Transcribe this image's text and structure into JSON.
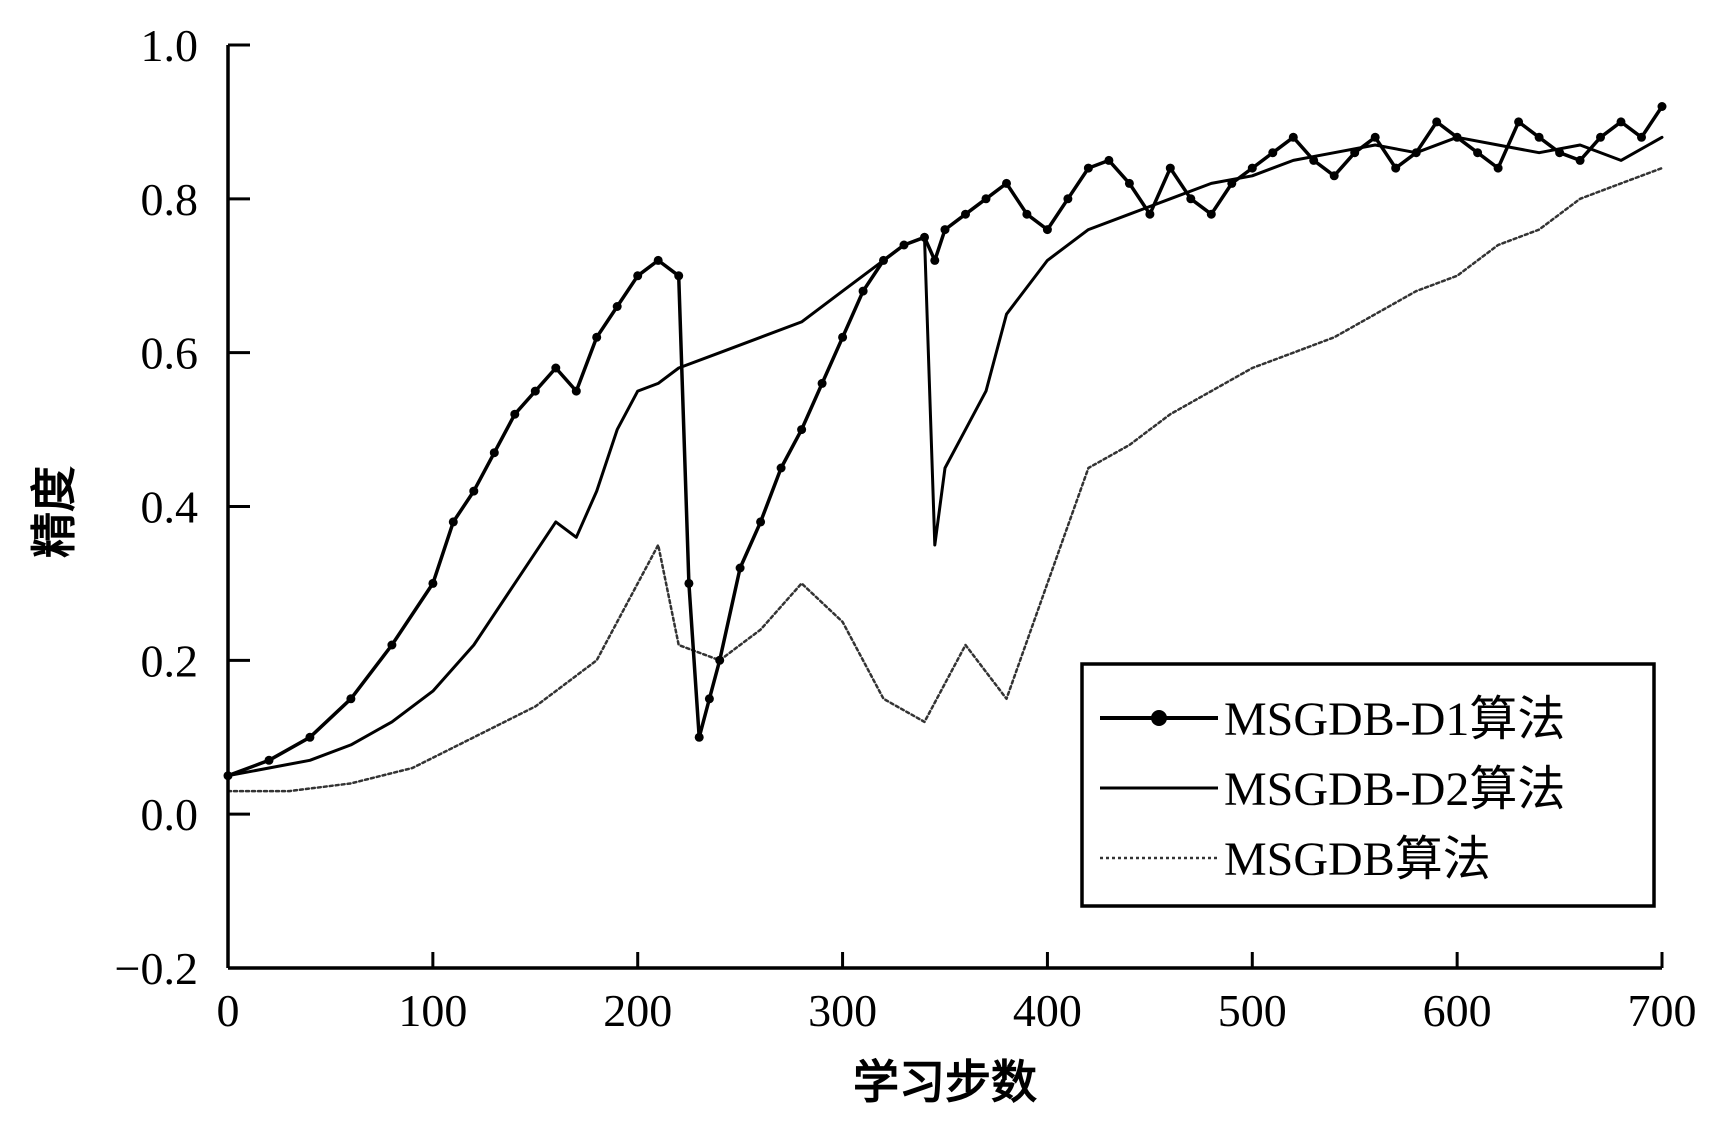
{
  "chart_data": {
    "type": "line",
    "title": "",
    "xlabel": "学习步数",
    "ylabel": "精度",
    "xlim": [
      0,
      700
    ],
    "ylim": [
      -0.2,
      1.0
    ],
    "x_ticks": [
      0,
      100,
      200,
      300,
      400,
      500,
      600,
      700
    ],
    "x_tick_labels": [
      "0",
      "100",
      "200",
      "300",
      "400",
      "500",
      "600",
      "700"
    ],
    "y_ticks": [
      -0.2,
      0.0,
      0.2,
      0.4,
      0.6,
      0.8,
      1.0
    ],
    "y_tick_labels": [
      "−0.2",
      "0.0",
      "0.2",
      "0.4",
      "0.6",
      "0.8",
      "1.0"
    ],
    "grid": false,
    "legend_position": "bottom-right",
    "series": [
      {
        "name": "MSGDB-D1算法",
        "style": "solid-marker",
        "color": "#000000",
        "x": [
          0,
          20,
          40,
          60,
          80,
          100,
          110,
          120,
          130,
          140,
          150,
          160,
          170,
          180,
          190,
          200,
          210,
          220,
          225,
          230,
          235,
          240,
          250,
          260,
          270,
          280,
          290,
          300,
          310,
          320,
          330,
          340,
          345,
          350,
          360,
          370,
          380,
          390,
          400,
          410,
          420,
          430,
          440,
          450,
          460,
          470,
          480,
          490,
          500,
          510,
          520,
          530,
          540,
          550,
          560,
          570,
          580,
          590,
          600,
          610,
          620,
          630,
          640,
          650,
          660,
          670,
          680,
          690,
          700
        ],
        "y": [
          0.05,
          0.07,
          0.1,
          0.15,
          0.22,
          0.3,
          0.38,
          0.42,
          0.47,
          0.52,
          0.55,
          0.58,
          0.55,
          0.62,
          0.66,
          0.7,
          0.72,
          0.7,
          0.3,
          0.1,
          0.15,
          0.2,
          0.32,
          0.38,
          0.45,
          0.5,
          0.56,
          0.62,
          0.68,
          0.72,
          0.74,
          0.75,
          0.72,
          0.76,
          0.78,
          0.8,
          0.82,
          0.78,
          0.76,
          0.8,
          0.84,
          0.85,
          0.82,
          0.78,
          0.84,
          0.8,
          0.78,
          0.82,
          0.84,
          0.86,
          0.88,
          0.85,
          0.83,
          0.86,
          0.88,
          0.84,
          0.86,
          0.9,
          0.88,
          0.86,
          0.84,
          0.9,
          0.88,
          0.86,
          0.85,
          0.88,
          0.9,
          0.88,
          0.92
        ]
      },
      {
        "name": "MSGDB-D2算法",
        "style": "solid",
        "color": "#000000",
        "x": [
          0,
          20,
          40,
          60,
          80,
          100,
          120,
          140,
          160,
          170,
          180,
          190,
          200,
          210,
          220,
          240,
          260,
          280,
          300,
          320,
          330,
          340,
          345,
          350,
          360,
          370,
          380,
          400,
          420,
          440,
          460,
          480,
          500,
          520,
          540,
          560,
          580,
          600,
          620,
          640,
          660,
          680,
          700
        ],
        "y": [
          0.05,
          0.06,
          0.07,
          0.09,
          0.12,
          0.16,
          0.22,
          0.3,
          0.38,
          0.36,
          0.42,
          0.5,
          0.55,
          0.56,
          0.58,
          0.6,
          0.62,
          0.64,
          0.68,
          0.72,
          0.74,
          0.75,
          0.35,
          0.45,
          0.5,
          0.55,
          0.65,
          0.72,
          0.76,
          0.78,
          0.8,
          0.82,
          0.83,
          0.85,
          0.86,
          0.87,
          0.86,
          0.88,
          0.87,
          0.86,
          0.87,
          0.85,
          0.88
        ]
      },
      {
        "name": "MSGDB算法",
        "style": "dotted",
        "color": "#000000",
        "x": [
          0,
          30,
          60,
          90,
          120,
          150,
          180,
          200,
          210,
          220,
          240,
          260,
          280,
          300,
          320,
          340,
          360,
          380,
          400,
          420,
          440,
          460,
          480,
          500,
          520,
          540,
          560,
          580,
          600,
          620,
          640,
          660,
          680,
          700
        ],
        "y": [
          0.03,
          0.03,
          0.04,
          0.06,
          0.1,
          0.14,
          0.2,
          0.3,
          0.35,
          0.22,
          0.2,
          0.24,
          0.3,
          0.25,
          0.15,
          0.12,
          0.22,
          0.15,
          0.3,
          0.45,
          0.48,
          0.52,
          0.55,
          0.58,
          0.6,
          0.62,
          0.65,
          0.68,
          0.7,
          0.74,
          0.76,
          0.8,
          0.82,
          0.84
        ]
      }
    ]
  }
}
